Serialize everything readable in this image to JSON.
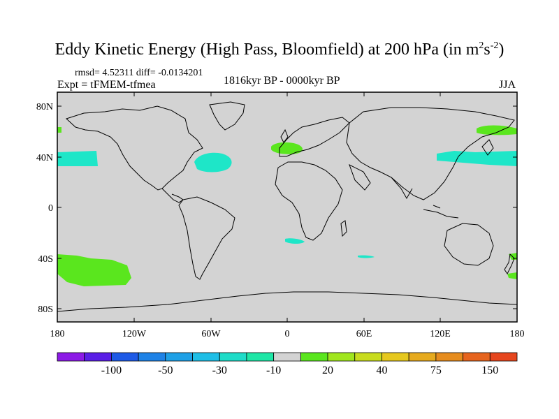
{
  "title": {
    "prefix": "Eddy Kinetic Energy (High Pass, Bloomfield) at 200 hPa (in m",
    "sup1": "2",
    "mid": "s",
    "sup2": "-2",
    "suffix": ")"
  },
  "stats": "rmsd= 4.52311 diff= -0.0134201",
  "expt": "Expt = tFMEM-tfmea",
  "period": "1816kyr BP - 0000kyr BP",
  "season": "JJA",
  "axes": {
    "lat_ticks": [
      "80N",
      "40N",
      "0",
      "40S",
      "80S"
    ],
    "lon_ticks": [
      "180",
      "120W",
      "60W",
      "0",
      "60E",
      "120E",
      "180"
    ]
  },
  "colorbar": {
    "colors": [
      "#8c1ae6",
      "#5a1ee6",
      "#1e5ae6",
      "#1e82e6",
      "#1ea0e6",
      "#1ebee6",
      "#1edcc8",
      "#1ee6a6",
      "#d3d3d3",
      "#5ae61e",
      "#a0e61e",
      "#c8dc1e",
      "#e6c81e",
      "#e6aa1e",
      "#e68c1e",
      "#e6641e",
      "#e6461e"
    ],
    "labels": [
      "-100",
      "-50",
      "-30",
      "-10",
      "20",
      "40",
      "75",
      "150"
    ]
  },
  "map_colors": {
    "background": "#d3d3d3",
    "negative_anomaly": "#1ee6c8",
    "positive_anomaly": "#5ae61e",
    "coastline": "#000000"
  }
}
